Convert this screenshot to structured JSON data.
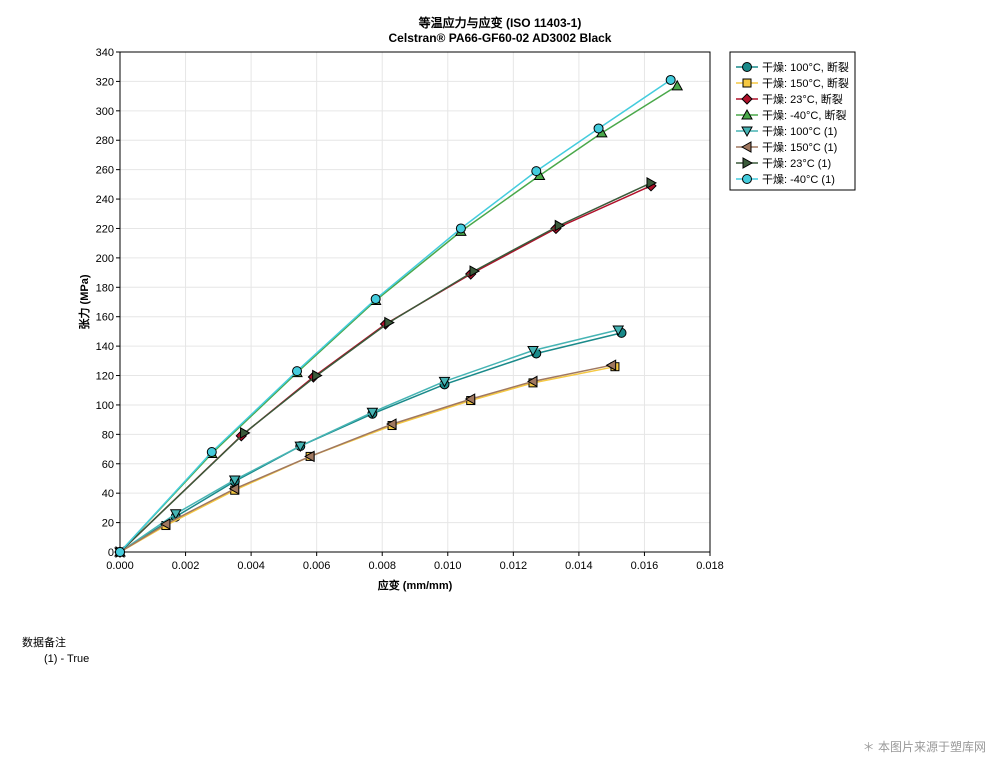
{
  "chart_data": {
    "type": "line",
    "title": "等温应力与应变 (ISO 11403-1)",
    "subtitle": "Celstran® PA66-GF60-02 AD3002 Black",
    "xlabel": "应变 (mm/mm)",
    "ylabel": "张力 (MPa)",
    "xlim": [
      0,
      0.018
    ],
    "ylim": [
      0,
      340
    ],
    "xticks": [
      "0.000",
      "0.002",
      "0.004",
      "0.006",
      "0.008",
      "0.010",
      "0.012",
      "0.014",
      "0.016",
      "0.018"
    ],
    "yticks": [
      "0",
      "20",
      "40",
      "60",
      "80",
      "100",
      "120",
      "140",
      "160",
      "180",
      "200",
      "220",
      "240",
      "260",
      "280",
      "300",
      "320",
      "340"
    ],
    "grid": true,
    "legend_position": "right-top",
    "series": [
      {
        "name": "干燥: 100°C, 断裂",
        "color": "#1a8a8a",
        "marker": "circle",
        "points": [
          [
            0,
            0
          ],
          [
            0.0017,
            24
          ],
          [
            0.0035,
            48
          ],
          [
            0.0055,
            72
          ],
          [
            0.0077,
            94
          ],
          [
            0.0099,
            114
          ],
          [
            0.0127,
            135
          ],
          [
            0.0153,
            149
          ]
        ]
      },
      {
        "name": "干燥: 150°C, 断裂",
        "color": "#f5c842",
        "marker": "square",
        "points": [
          [
            0,
            0
          ],
          [
            0.0014,
            18
          ],
          [
            0.0035,
            42
          ],
          [
            0.0058,
            65
          ],
          [
            0.0083,
            86
          ],
          [
            0.0107,
            103
          ],
          [
            0.0126,
            115
          ],
          [
            0.0151,
            126
          ]
        ]
      },
      {
        "name": "干燥: 23°C, 断裂",
        "color": "#b0102a",
        "marker": "diamond",
        "points": [
          [
            0,
            0
          ],
          [
            0.0037,
            79
          ],
          [
            0.0059,
            119
          ],
          [
            0.0081,
            155
          ],
          [
            0.0107,
            189
          ],
          [
            0.0133,
            220
          ],
          [
            0.0162,
            249
          ]
        ]
      },
      {
        "name": "干燥: -40°C, 断裂",
        "color": "#4aa84a",
        "marker": "triangle-up",
        "points": [
          [
            0,
            0
          ],
          [
            0.0028,
            67
          ],
          [
            0.0054,
            122
          ],
          [
            0.0078,
            171
          ],
          [
            0.0104,
            218
          ],
          [
            0.0128,
            256
          ],
          [
            0.0147,
            285
          ],
          [
            0.017,
            317
          ]
        ]
      },
      {
        "name": "干燥: 100°C (1)",
        "color": "#46b4b4",
        "marker": "triangle-down",
        "points": [
          [
            0,
            0
          ],
          [
            0.0017,
            26
          ],
          [
            0.0035,
            49
          ],
          [
            0.0055,
            72
          ],
          [
            0.0077,
            95
          ],
          [
            0.0099,
            116
          ],
          [
            0.0126,
            137
          ],
          [
            0.0152,
            151
          ]
        ]
      },
      {
        "name": "干燥: 150°C (1)",
        "color": "#a07860",
        "marker": "triangle-left",
        "points": [
          [
            0,
            0
          ],
          [
            0.0014,
            19
          ],
          [
            0.0035,
            43
          ],
          [
            0.0058,
            65
          ],
          [
            0.0083,
            87
          ],
          [
            0.0107,
            104
          ],
          [
            0.0126,
            116
          ],
          [
            0.015,
            127
          ]
        ]
      },
      {
        "name": "干燥: 23°C (1)",
        "color": "#3a5a3a",
        "marker": "triangle-right",
        "points": [
          [
            0,
            0
          ],
          [
            0.0038,
            81
          ],
          [
            0.006,
            120
          ],
          [
            0.0082,
            156
          ],
          [
            0.0108,
            191
          ],
          [
            0.0134,
            222
          ],
          [
            0.0162,
            251
          ]
        ]
      },
      {
        "name": "干燥: -40°C (1)",
        "color": "#44ccdd",
        "marker": "circle",
        "points": [
          [
            0,
            0
          ],
          [
            0.0028,
            68
          ],
          [
            0.0054,
            123
          ],
          [
            0.0078,
            172
          ],
          [
            0.0104,
            220
          ],
          [
            0.0127,
            259
          ],
          [
            0.0146,
            288
          ],
          [
            0.0168,
            321
          ]
        ]
      }
    ]
  },
  "notes": {
    "title": "数据备注",
    "items": [
      "(1) - True"
    ]
  },
  "watermark": "＊ 本图片来源于塑库网"
}
